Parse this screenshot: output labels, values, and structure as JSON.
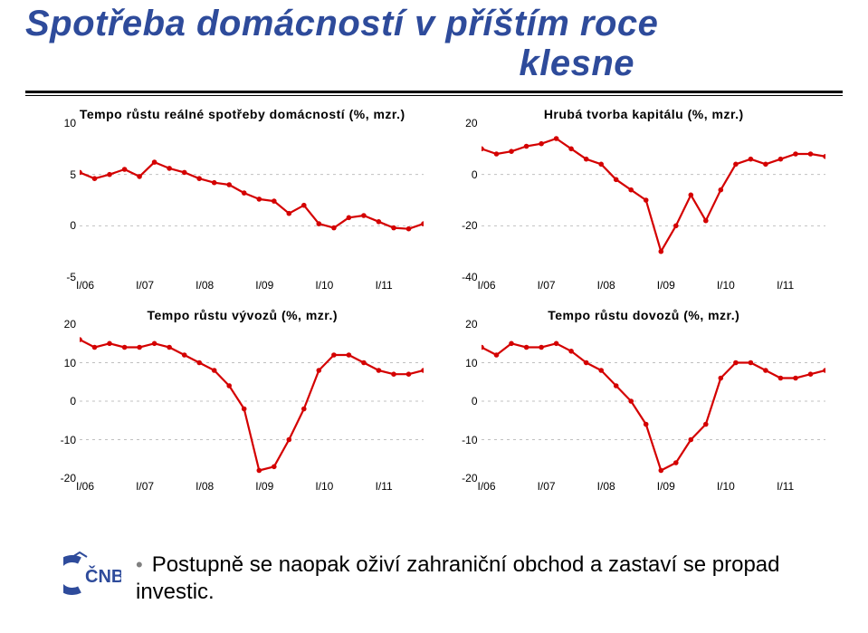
{
  "title_line1": "Spotřeba domácností v příštím roce",
  "title_line2": "klesne",
  "bullet_text": "Postupně se naopak oživí zahraniční obchod a zastaví se propad investic.",
  "x_labels": [
    "I/06",
    "I/07",
    "I/08",
    "I/09",
    "I/10",
    "I/11"
  ],
  "line_color": "#d40000",
  "marker_fill": "#d40000",
  "line_width": 2.2,
  "marker_radius": 2.8,
  "grid_color": "#c0c0c0",
  "grid_dash": "3,4",
  "axis_color": "#000000",
  "plot_bg": "#ffffff",
  "fontsize_title": 40,
  "fontsize_chart_title": 14,
  "fontsize_tick": 12,
  "fontsize_bullet": 24,
  "charts": [
    {
      "key": "consumption",
      "title": "Tempo růstu reálné spotřeby domácností (%, mzr.)",
      "ymin": -5,
      "ymax": 10,
      "yticks": [
        -5,
        0,
        5,
        10
      ],
      "n": 24,
      "values": [
        5.2,
        4.6,
        5.0,
        5.5,
        4.8,
        6.2,
        5.6,
        5.2,
        4.6,
        4.2,
        4.0,
        3.2,
        2.6,
        2.4,
        1.2,
        2.0,
        0.2,
        -0.2,
        0.8,
        1.0,
        0.4,
        -0.2,
        -0.3,
        0.2
      ]
    },
    {
      "key": "capital",
      "title": "Hrubá tvorba kapitálu (%, mzr.)",
      "ymin": -40,
      "ymax": 20,
      "yticks": [
        -40,
        -20,
        0,
        20
      ],
      "n": 24,
      "values": [
        10,
        8,
        9,
        11,
        12,
        14,
        10,
        6,
        4,
        -2,
        -6,
        -10,
        -30,
        -20,
        -8,
        -18,
        -6,
        4,
        6,
        4,
        6,
        8,
        8,
        7
      ]
    },
    {
      "key": "export",
      "title": "Tempo růstu vývozů (%, mzr.)",
      "ymin": -20,
      "ymax": 20,
      "yticks": [
        -20,
        -10,
        0,
        10,
        20
      ],
      "n": 24,
      "values": [
        16,
        14,
        15,
        14,
        14,
        15,
        14,
        12,
        10,
        8,
        4,
        -2,
        -18,
        -17,
        -10,
        -2,
        8,
        12,
        12,
        10,
        8,
        7,
        7,
        8
      ]
    },
    {
      "key": "import",
      "title": "Tempo růstu dovozů (%, mzr.)",
      "ymin": -20,
      "ymax": 20,
      "yticks": [
        -20,
        -10,
        0,
        10,
        20
      ],
      "n": 24,
      "values": [
        14,
        12,
        15,
        14,
        14,
        15,
        13,
        10,
        8,
        4,
        0,
        -6,
        -18,
        -16,
        -10,
        -6,
        6,
        10,
        10,
        8,
        6,
        6,
        7,
        8
      ]
    }
  ]
}
